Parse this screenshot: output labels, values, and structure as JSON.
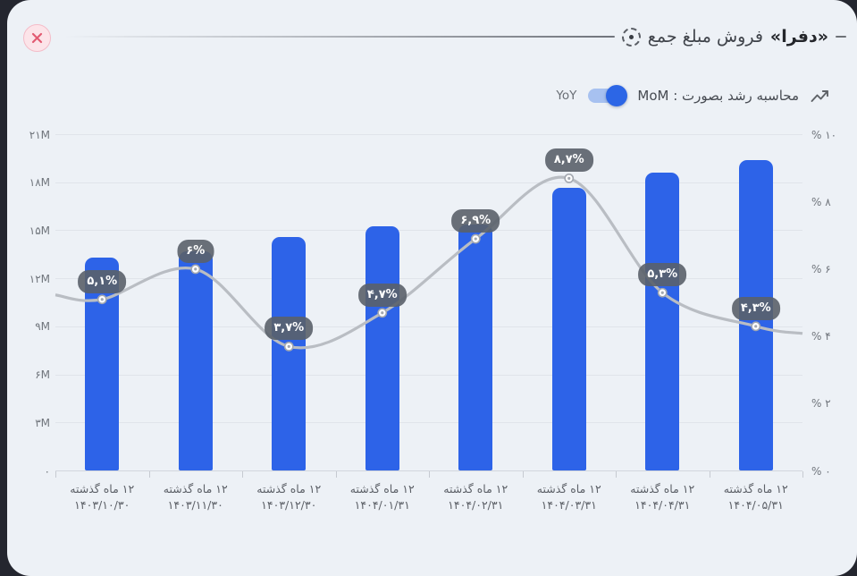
{
  "window": {
    "close_tooltip": "close"
  },
  "header": {
    "title_words": [
      "جمع",
      "مبلغ",
      "فروش"
    ],
    "title_emphasis": "«دفرا»",
    "title_full": "جمع مبلغ فروش «دفرا»"
  },
  "toggle": {
    "left_option": "YoY",
    "right_option": "MoM",
    "state_label": "محاسبه رشد بصورت : MoM",
    "selected": "MoM"
  },
  "colors": {
    "bar_fill": "#2d63e8",
    "line_stroke": "#b9bdc3",
    "marker_ring": "#a3a8b0",
    "badge_bg": "rgba(90,96,106,0.9)",
    "card_bg": "#edf1f6",
    "backdrop": "#24262f",
    "toggle_track": "#a7c1f0",
    "toggle_knob": "#2c66e6",
    "close_pink": "#e25b72"
  },
  "chart_data": {
    "type": "bar",
    "title": "جمع مبلغ فروش «دفرا»",
    "categories": [
      {
        "line1": "۱۲ ماه گذشته",
        "line2": "۱۴۰۳/۱۰/۳۰"
      },
      {
        "line1": "۱۲ ماه گذشته",
        "line2": "۱۴۰۳/۱۱/۳۰"
      },
      {
        "line1": "۱۲ ماه گذشته",
        "line2": "۱۴۰۳/۱۲/۳۰"
      },
      {
        "line1": "۱۲ ماه گذشته",
        "line2": "۱۴۰۴/۰۱/۳۱"
      },
      {
        "line1": "۱۲ ماه گذشته",
        "line2": "۱۴۰۴/۰۲/۳۱"
      },
      {
        "line1": "۱۲ ماه گذشته",
        "line2": "۱۴۰۴/۰۳/۳۱"
      },
      {
        "line1": "۱۲ ماه گذشته",
        "line2": "۱۴۰۴/۰۴/۳۱"
      },
      {
        "line1": "۱۲ ماه گذشته",
        "line2": "۱۴۰۴/۰۵/۳۱"
      }
    ],
    "series": [
      {
        "name": "total-sales-amount",
        "type": "bar",
        "unit": "M",
        "values": [
          13.3,
          13.7,
          14.6,
          15.3,
          15.4,
          17.7,
          18.6,
          19.4
        ]
      },
      {
        "name": "growth-percent-mom",
        "type": "line",
        "unit": "%",
        "values": [
          5.1,
          6.0,
          3.7,
          4.7,
          6.9,
          8.7,
          5.3,
          4.3
        ],
        "point_labels": [
          "۵,۱%",
          "۶%",
          "۳,۷%",
          "۴,۷%",
          "۶,۹%",
          "۸,۷%",
          "۵,۳%",
          "۴,۳%"
        ]
      }
    ],
    "left_axis": {
      "range": [
        0,
        21
      ],
      "tick_values": [
        21,
        18,
        15,
        12,
        9,
        6,
        3,
        0
      ],
      "tick_labels": [
        "۲۱M",
        "۱۸M",
        "۱۵M",
        "۱۲M",
        "۹M",
        "۶M",
        "۳M",
        "۰"
      ]
    },
    "right_axis": {
      "range": [
        0,
        10
      ],
      "tick_values": [
        10,
        8,
        6,
        4,
        2,
        0
      ],
      "tick_labels": [
        "% ۱۰",
        "% ۸",
        "% ۶",
        "% ۴",
        "% ۲",
        "% ۰"
      ]
    },
    "grid": true,
    "legend": false
  }
}
